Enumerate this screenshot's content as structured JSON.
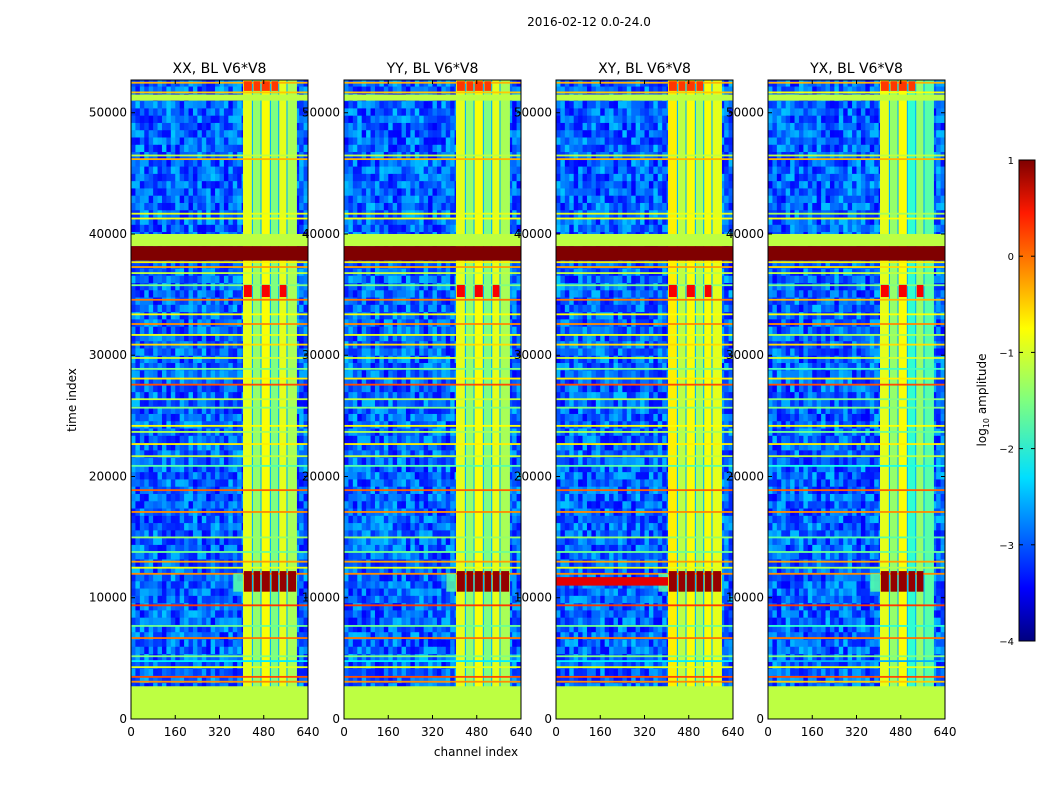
{
  "chart_data": {
    "type": "heatmap",
    "title": "2016-02-12 0.0-24.0",
    "xlabel": "channel index",
    "ylabel": "time index",
    "xlim": [
      0,
      640
    ],
    "ylim": [
      0,
      52700
    ],
    "xticks": [
      0,
      160,
      320,
      480,
      640
    ],
    "yticks": [
      0,
      10000,
      20000,
      30000,
      40000,
      50000
    ],
    "xtick_labels": [
      "0",
      "160",
      "320",
      "480",
      "640"
    ],
    "ytick_labels": [
      "0",
      "10000",
      "20000",
      "30000",
      "40000",
      "50000"
    ],
    "panels": [
      {
        "title": "XX, BL V6*V8",
        "pol": "XX"
      },
      {
        "title": "YY, BL V6*V8",
        "pol": "YY"
      },
      {
        "title": "XY, BL V6*V8",
        "pol": "XY"
      },
      {
        "title": "YX, BL V6*V8",
        "pol": "YX"
      }
    ],
    "colorbar": {
      "label_main": "log",
      "label_sub": "10",
      "label_rest": " amplitude",
      "range": [
        -4,
        1
      ],
      "ticks": [
        1,
        0,
        -1,
        -2,
        -3,
        -4
      ],
      "tick_labels": [
        "1",
        "0",
        "−1",
        "−2",
        "−3",
        "−4"
      ],
      "colormap": "jet"
    },
    "description_bands": {
      "rfi_channel_range": [
        405,
        600
      ],
      "saturated_time_ranges": [
        [
          37800,
          39000
        ],
        [
          10500,
          12200
        ]
      ],
      "flagged_time_ranges": [
        [
          39000,
          40000
        ],
        [
          0,
          2700
        ],
        [
          51000,
          51500
        ]
      ]
    }
  }
}
